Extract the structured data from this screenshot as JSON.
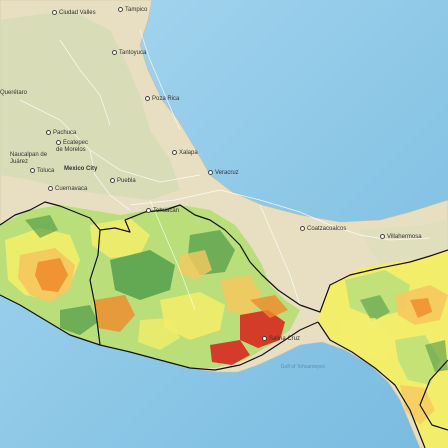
{
  "map": {
    "colors": {
      "ocean": "#9fd0ea",
      "ocean_deep": "#7cbde2",
      "land": "#e7ddc0",
      "land_green": "#cddcb0",
      "border": "#111111",
      "high": "#d62a1f",
      "mid_high": "#f08a2b",
      "mid": "#f6c85f",
      "low": "#f3ee6a",
      "lower": "#b9de7a",
      "lowest": "#4e9a49"
    },
    "cities": [
      {
        "name": "Ciudad Valles"
      },
      {
        "name": "Tampico"
      },
      {
        "name": "Tantoyuca"
      },
      {
        "name": "Querétaro"
      },
      {
        "name": "Poza Rica"
      },
      {
        "name": "Pachuca"
      },
      {
        "name": "Ecatepec de Morelos"
      },
      {
        "name": "Naucalpan de Juárez"
      },
      {
        "name": "Xalapa"
      },
      {
        "name": "Toluca"
      },
      {
        "name": "Mexico City"
      },
      {
        "name": "Veracruz"
      },
      {
        "name": "Puebla"
      },
      {
        "name": "Cuernavaca"
      },
      {
        "name": "Tehuacán"
      },
      {
        "name": "Coatzacoalcos"
      },
      {
        "name": "Villahermosa"
      },
      {
        "name": "Salina Cruz"
      }
    ],
    "water_labels": [
      {
        "name": "Gulf of Tehuantepec"
      }
    ]
  }
}
